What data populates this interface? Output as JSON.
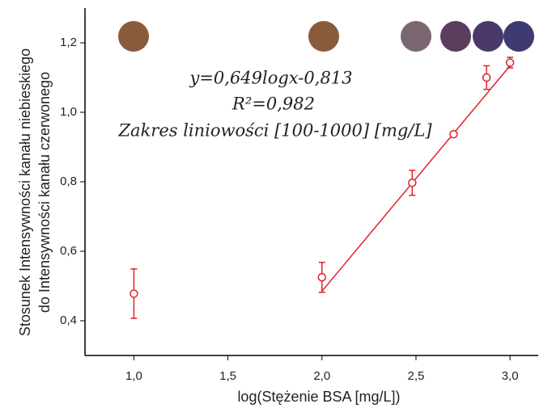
{
  "chart_data": {
    "type": "scatter",
    "x_label": "log(Stężenie BSA [mg/L])",
    "y_label": [
      "Stosunek Intensywności kanału niebieskiego",
      "do Intensywności kanału czerwonego"
    ],
    "annotations": [
      "y=0,649logx-0,813",
      "R²=0,982",
      "Zakres liniowości [100-1000] [mg/L]"
    ],
    "xlim": [
      0.74,
      3.15
    ],
    "ylim": [
      0.3,
      1.3
    ],
    "xticks": [
      {
        "value": 1,
        "label": "1,0"
      },
      {
        "value": 1.5,
        "label": "1,5"
      },
      {
        "value": 2,
        "label": "2,0"
      },
      {
        "value": 2.5,
        "label": "2,5"
      },
      {
        "value": 3,
        "label": "3,0"
      }
    ],
    "yticks": [
      {
        "value": 0.4,
        "label": "0,4"
      },
      {
        "value": 0.6,
        "label": "0,6"
      },
      {
        "value": 0.8,
        "label": "0,8"
      },
      {
        "value": 1,
        "label": "1,0"
      },
      {
        "value": 1.2,
        "label": "1,2"
      }
    ],
    "series": [
      {
        "color": "#e0202a",
        "x": [
          1,
          2,
          2.48,
          2.7,
          2.875,
          3
        ],
        "values": [
          0.478,
          0.525,
          0.797,
          0.937,
          1.1,
          1.143
        ],
        "errors": [
          0.071,
          0.043,
          0.036,
          0.005,
          0.034,
          0.015
        ]
      }
    ],
    "fit_line": {
      "color": "#e0202a",
      "x": [
        2,
        3
      ],
      "values": [
        0.485,
        1.134
      ]
    }
  }
}
